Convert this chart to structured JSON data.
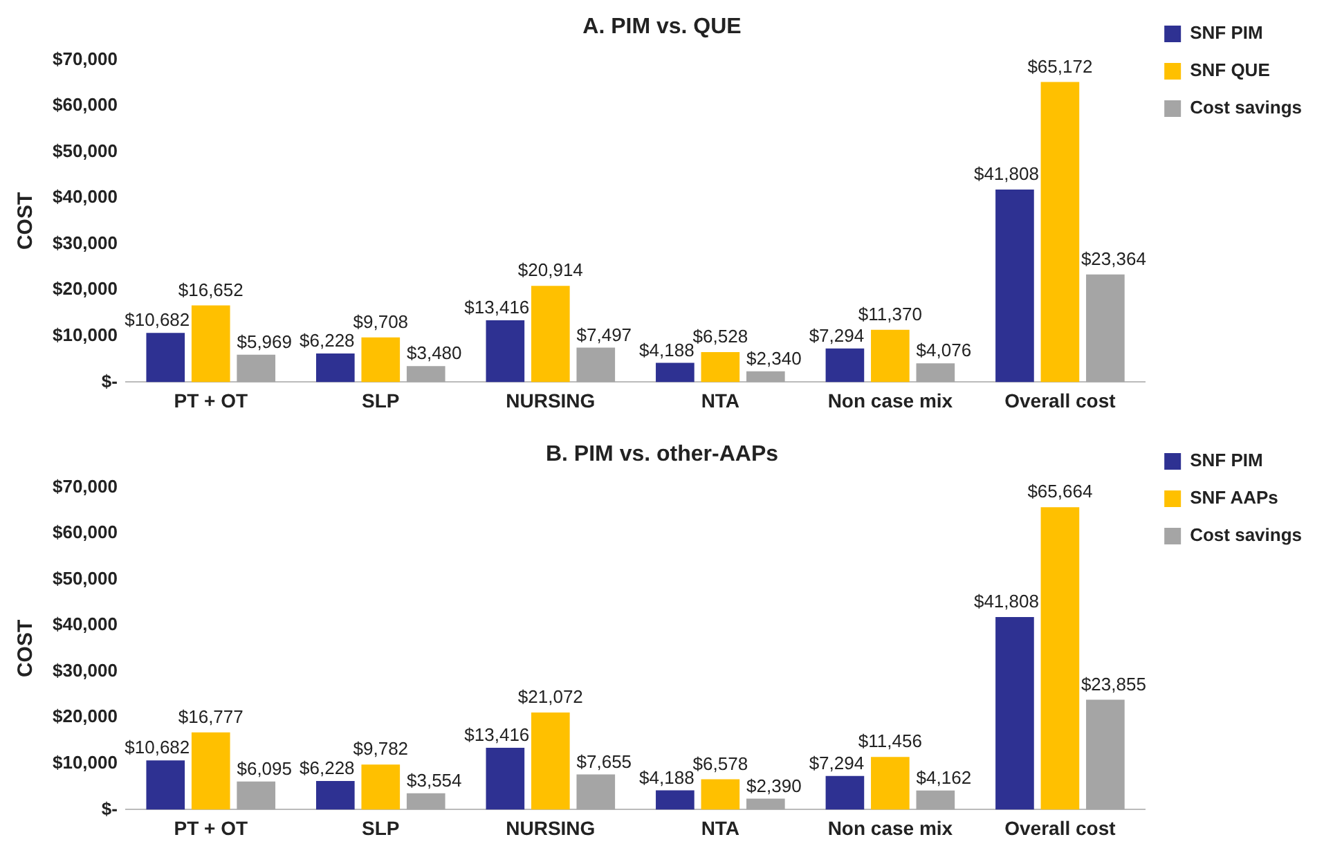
{
  "chart_data": [
    {
      "type": "bar",
      "title": "A. PIM vs. QUE",
      "ylabel": "COST",
      "categories": [
        "PT + OT",
        "SLP",
        "NURSING",
        "NTA",
        "Non case mix",
        "Overall cost"
      ],
      "series": [
        {
          "name": "SNF PIM",
          "color": "#2e3192",
          "values": [
            10682,
            6228,
            13416,
            4188,
            7294,
            41808
          ],
          "value_labels": [
            "$10,682",
            "$6,228",
            "$13,416",
            "$4,188",
            "$7,294",
            "$41,808"
          ]
        },
        {
          "name": "SNF QUE",
          "color": "#ffc000",
          "values": [
            16652,
            9708,
            20914,
            6528,
            11370,
            65172
          ],
          "value_labels": [
            "$16,652",
            "$9,708",
            "$20,914",
            "$6,528",
            "$11,370",
            "$65,172"
          ]
        },
        {
          "name": "Cost savings",
          "color": "#a5a5a5",
          "values": [
            5969,
            3480,
            7497,
            2340,
            4076,
            23364
          ],
          "value_labels": [
            "$5,969",
            "$3,480",
            "$7,497",
            "$2,340",
            "$4,076",
            "$23,364"
          ]
        }
      ],
      "ylim": [
        0,
        70000
      ],
      "yticks": [
        {
          "value": 0,
          "label": "$-"
        },
        {
          "value": 10000,
          "label": "$10,000"
        },
        {
          "value": 20000,
          "label": "$20,000"
        },
        {
          "value": 30000,
          "label": "$30,000"
        },
        {
          "value": 40000,
          "label": "$40,000"
        },
        {
          "value": 50000,
          "label": "$50,000"
        },
        {
          "value": 60000,
          "label": "$60,000"
        },
        {
          "value": 70000,
          "label": "$70,000"
        }
      ],
      "grid": false,
      "legend": "right"
    },
    {
      "type": "bar",
      "title": "B. PIM vs. other-AAPs",
      "ylabel": "COST",
      "categories": [
        "PT + OT",
        "SLP",
        "NURSING",
        "NTA",
        "Non case mix",
        "Overall cost"
      ],
      "series": [
        {
          "name": "SNF PIM",
          "color": "#2e3192",
          "values": [
            10682,
            6228,
            13416,
            4188,
            7294,
            41808
          ],
          "value_labels": [
            "$10,682",
            "$6,228",
            "$13,416",
            "$4,188",
            "$7,294",
            "$41,808"
          ]
        },
        {
          "name": "SNF AAPs",
          "color": "#ffc000",
          "values": [
            16777,
            9782,
            21072,
            6578,
            11456,
            65664
          ],
          "value_labels": [
            "$16,777",
            "$9,782",
            "$21,072",
            "$6,578",
            "$11,456",
            "$65,664"
          ]
        },
        {
          "name": "Cost savings",
          "color": "#a5a5a5",
          "values": [
            6095,
            3554,
            7655,
            2390,
            4162,
            23855
          ],
          "value_labels": [
            "$6,095",
            "$3,554",
            "$7,655",
            "$2,390",
            "$4,162",
            "$23,855"
          ]
        }
      ],
      "ylim": [
        0,
        70000
      ],
      "yticks": [
        {
          "value": 0,
          "label": "$-"
        },
        {
          "value": 10000,
          "label": "$10,000"
        },
        {
          "value": 20000,
          "label": "$20,000"
        },
        {
          "value": 30000,
          "label": "$30,000"
        },
        {
          "value": 40000,
          "label": "$40,000"
        },
        {
          "value": 50000,
          "label": "$50,000"
        },
        {
          "value": 60000,
          "label": "$60,000"
        },
        {
          "value": 70000,
          "label": "$70,000"
        }
      ],
      "grid": false,
      "legend": "right"
    }
  ]
}
